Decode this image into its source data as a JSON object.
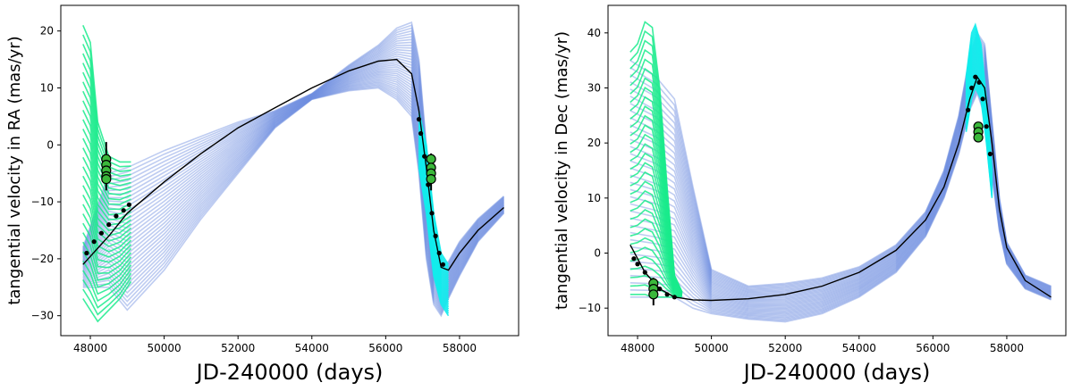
{
  "chart_data": [
    {
      "id": "ra",
      "type": "line",
      "title": "",
      "xlabel": "JD-240000 (days)",
      "ylabel": "tangential velocity in RA (mas/yr)",
      "xlim": [
        47200,
        59600
      ],
      "ylim": [
        -33.5,
        24.5
      ],
      "xticks": [
        48000,
        50000,
        52000,
        54000,
        56000,
        58000
      ],
      "yticks": [
        -30,
        -20,
        -10,
        0,
        10,
        20
      ],
      "colors": {
        "orbit_fan": "#6f8fe0",
        "early_fan": "#1aeb8c",
        "recent_fan": "#12ecec",
        "best_fit": "#000000",
        "obs_fill": "#3bb83b"
      },
      "series": [
        {
          "name": "best-fit orbit",
          "x": [
            47800,
            48500,
            49000,
            50000,
            51000,
            52000,
            53000,
            54000,
            55000,
            55800,
            56300,
            56700,
            56900,
            57100,
            57300,
            57500,
            57700,
            58000,
            58500,
            59200
          ],
          "y": [
            -21,
            -16,
            -12,
            -6.5,
            -1.5,
            3,
            6.5,
            10,
            13,
            14.7,
            15,
            12.5,
            6,
            -4,
            -15,
            -21.5,
            -22,
            -19,
            -15,
            -11
          ]
        }
      ],
      "fans": [
        {
          "name": "orbit fan (blue)",
          "x": [
            47800,
            48500,
            49000,
            50000,
            51000,
            52000,
            53000,
            54000,
            55000,
            55800,
            56300,
            56700,
            56900,
            57100,
            57300,
            57500,
            57700,
            58000,
            58500,
            59200
          ],
          "lower": [
            -25,
            -25,
            -29,
            -22,
            -13,
            -5,
            3,
            8,
            9.5,
            10,
            8,
            5,
            -5,
            -20,
            -28,
            -30,
            -27,
            -23,
            -17,
            -12
          ],
          "upper": [
            -18,
            -5,
            -4,
            -1,
            1.5,
            4,
            6,
            9,
            14,
            17.5,
            20.5,
            21.5,
            15,
            0,
            -15,
            -21,
            -20.5,
            -17,
            -13,
            -9
          ]
        },
        {
          "name": "early epoch fan (green)",
          "x": [
            47800,
            48000,
            48200,
            48500,
            48800,
            49100
          ],
          "lower": [
            -27,
            -29,
            -31,
            -29,
            -27,
            -24
          ],
          "upper": [
            21,
            18,
            4,
            -2,
            -3,
            -3
          ]
        },
        {
          "name": "recent epoch fan (cyan)",
          "x": [
            56900,
            57100,
            57300,
            57500,
            57700
          ],
          "lower": [
            -4,
            -12,
            -23,
            -28,
            -30
          ],
          "upper": [
            6,
            0,
            -12,
            -19,
            -21
          ]
        }
      ],
      "obs_points": {
        "x": [
          47900,
          48100,
          48300,
          48500,
          48700,
          48900,
          49050,
          56900,
          56950,
          57050,
          57150,
          57250,
          57350,
          57450,
          57550
        ],
        "y": [
          -19,
          -17,
          -15.5,
          -14,
          -12.5,
          -11.5,
          -10.5,
          4.5,
          2,
          -2,
          -7,
          -12,
          -16,
          -19,
          -21
        ]
      },
      "obs_markers": {
        "x": [
          48430,
          48430,
          48430,
          48430,
          48430,
          57230,
          57230,
          57230,
          57230
        ],
        "y": [
          -2.5,
          -3.5,
          -4.5,
          -5.5,
          -6,
          -2.5,
          -4,
          -5,
          -6
        ],
        "errbar": [
          [
            48430,
            -8,
            0.5
          ],
          [
            57230,
            -8,
            -1.5
          ]
        ]
      }
    },
    {
      "id": "dec",
      "type": "line",
      "title": "",
      "xlabel": "JD-240000 (days)",
      "ylabel": "tangential velocity in Dec (mas/yr)",
      "xlim": [
        47200,
        59600
      ],
      "ylim": [
        -15,
        45
      ],
      "xticks": [
        48000,
        50000,
        52000,
        54000,
        56000,
        58000
      ],
      "yticks": [
        -10,
        0,
        10,
        20,
        30,
        40
      ],
      "colors": {
        "orbit_fan": "#6f8fe0",
        "early_fan": "#1aeb8c",
        "recent_fan": "#12ecec",
        "best_fit": "#000000",
        "obs_fill": "#3bb83b"
      },
      "series": [
        {
          "name": "best-fit orbit",
          "x": [
            47800,
            48200,
            48600,
            49000,
            49500,
            50000,
            51000,
            52000,
            53000,
            54000,
            55000,
            55800,
            56300,
            56700,
            57000,
            57200,
            57400,
            57600,
            57800,
            58000,
            58500,
            59200
          ],
          "y": [
            1.5,
            -3.5,
            -6.5,
            -8,
            -8.5,
            -8.6,
            -8.3,
            -7.5,
            -6,
            -3.5,
            0.5,
            6,
            12,
            20,
            28,
            32,
            30,
            20,
            8,
            1,
            -5,
            -8
          ]
        }
      ],
      "fans": [
        {
          "name": "orbit fan (blue)",
          "x": [
            47800,
            48500,
            49000,
            49500,
            50000,
            51000,
            52000,
            53000,
            54000,
            55000,
            55800,
            56300,
            56700,
            57000,
            57200,
            57400,
            57600,
            57800,
            58000,
            58500,
            59200
          ],
          "lower": [
            -8,
            -8,
            -8,
            -10,
            -11,
            -12,
            -12.5,
            -11,
            -8,
            -3.5,
            3,
            10,
            18,
            26,
            29,
            25,
            14,
            4,
            -2,
            -6.5,
            -8.5
          ],
          "upper": [
            35,
            32,
            28,
            12,
            -3,
            -6,
            -5.5,
            -4.5,
            -2.5,
            1.5,
            7.5,
            15,
            25,
            36,
            40,
            38,
            24,
            10,
            2,
            -4,
            -6
          ]
        },
        {
          "name": "early epoch fan (green)",
          "x": [
            47800,
            48000,
            48200,
            48400,
            48600,
            48800,
            49000,
            49200
          ],
          "lower": [
            -7.5,
            -7.5,
            -7.5,
            -8,
            -8,
            -8,
            -8,
            -8
          ],
          "upper": [
            36.5,
            38,
            42,
            41,
            30,
            12,
            -4,
            -7
          ]
        },
        {
          "name": "recent epoch fan (cyan)",
          "x": [
            56900,
            57050,
            57150,
            57300,
            57450,
            57600
          ],
          "lower": [
            22,
            28,
            30,
            28,
            20,
            10
          ],
          "upper": [
            32,
            40,
            41.5,
            38,
            28,
            15
          ]
        }
      ],
      "obs_points": {
        "x": [
          47900,
          48000,
          48200,
          48400,
          48600,
          48800,
          49000,
          56950,
          57050,
          57150,
          57250,
          57350,
          57450,
          57550
        ],
        "y": [
          -1,
          -2,
          -3.5,
          -5,
          -6.5,
          -7.5,
          -8,
          26,
          30,
          32,
          31,
          28,
          23,
          18
        ]
      },
      "obs_markers": {
        "x": [
          48430,
          48430,
          48430,
          57230,
          57230,
          57230
        ],
        "y": [
          -5.5,
          -6.5,
          -7.5,
          23,
          22,
          21
        ],
        "errbar": [
          [
            48430,
            -9.5,
            -4.5
          ],
          [
            57230,
            20.5,
            23.5
          ]
        ]
      }
    }
  ]
}
